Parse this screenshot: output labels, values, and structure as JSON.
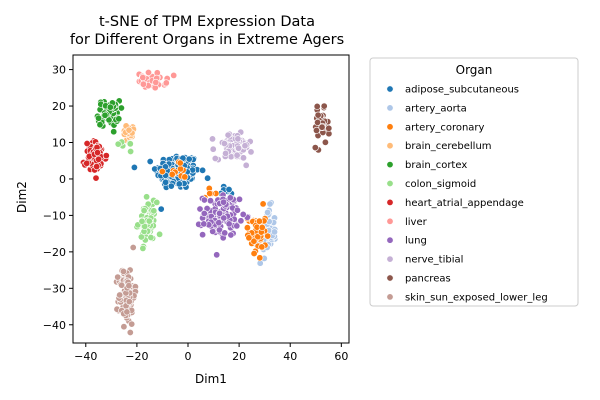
{
  "chart_data": {
    "type": "scatter",
    "title_lines": [
      "t-SNE of TPM Expression Data",
      "for Different Organs in Extreme Agers"
    ],
    "xlabel": "Dim1",
    "ylabel": "Dim2",
    "xlim": [
      -45,
      63
    ],
    "ylim": [
      -45,
      34
    ],
    "xticks": [
      -40,
      -20,
      0,
      20,
      40,
      60
    ],
    "yticks": [
      -40,
      -30,
      -20,
      -10,
      0,
      10,
      20,
      30
    ],
    "grid": false,
    "legend": {
      "title": "Organ",
      "placement": "right-outside"
    },
    "series": [
      {
        "name": "adipose_subcutaneous",
        "color": "#1f77b4",
        "clusters": [
          {
            "cx": -4,
            "cy": 2,
            "sx": 6,
            "sy": 3.5,
            "n": 180
          },
          {
            "cx": 15,
            "cy": -3,
            "sx": 2,
            "sy": 1,
            "n": 8
          }
        ]
      },
      {
        "name": "artery_aorta",
        "color": "#aec7e8",
        "clusters": [
          {
            "cx": 31,
            "cy": -15,
            "sx": 2.5,
            "sy": 5,
            "n": 55
          }
        ]
      },
      {
        "name": "artery_coronary",
        "color": "#ff7f0e",
        "clusters": [
          {
            "cx": 27,
            "cy": -15,
            "sx": 2.5,
            "sy": 5,
            "n": 45
          },
          {
            "cx": -3,
            "cy": 2,
            "sx": 4,
            "sy": 2,
            "n": 10
          },
          {
            "cx": 8,
            "cy": -4,
            "sx": 2,
            "sy": 1,
            "n": 5
          }
        ]
      },
      {
        "name": "brain_cerebellum",
        "color": "#ffbb78",
        "clusters": [
          {
            "cx": -23,
            "cy": 13,
            "sx": 2,
            "sy": 1.5,
            "n": 20
          }
        ]
      },
      {
        "name": "brain_cortex",
        "color": "#2ca02c",
        "clusters": [
          {
            "cx": -31,
            "cy": 18,
            "sx": 3,
            "sy": 2.5,
            "n": 60
          }
        ]
      },
      {
        "name": "colon_sigmoid",
        "color": "#98df8a",
        "clusters": [
          {
            "cx": -16,
            "cy": -12,
            "sx": 2.5,
            "sy": 4,
            "n": 60
          },
          {
            "cx": -25,
            "cy": 9,
            "sx": 2,
            "sy": 1,
            "n": 6
          }
        ]
      },
      {
        "name": "heart_atrial_appendage",
        "color": "#d62728",
        "clusters": [
          {
            "cx": -36,
            "cy": 6,
            "sx": 3,
            "sy": 3,
            "n": 75
          }
        ]
      },
      {
        "name": "liver",
        "color": "#ff9896",
        "clusters": [
          {
            "cx": -14,
            "cy": 27,
            "sx": 4,
            "sy": 1.5,
            "n": 40
          }
        ]
      },
      {
        "name": "lung",
        "color": "#9467bd",
        "clusters": [
          {
            "cx": 13,
            "cy": -10,
            "sx": 5,
            "sy": 4,
            "n": 110
          }
        ]
      },
      {
        "name": "nerve_tibial",
        "color": "#c5b0d5",
        "clusters": [
          {
            "cx": 18,
            "cy": 9,
            "sx": 5,
            "sy": 2.5,
            "n": 95
          }
        ]
      },
      {
        "name": "pancreas",
        "color": "#8c564b",
        "clusters": [
          {
            "cx": 52,
            "cy": 14,
            "sx": 2,
            "sy": 3.5,
            "n": 40
          }
        ]
      },
      {
        "name": "skin_sun_exposed_lower_leg",
        "color": "#c49c94",
        "clusters": [
          {
            "cx": -24,
            "cy": -32,
            "sx": 2.2,
            "sy": 5.5,
            "n": 120
          }
        ]
      }
    ]
  }
}
